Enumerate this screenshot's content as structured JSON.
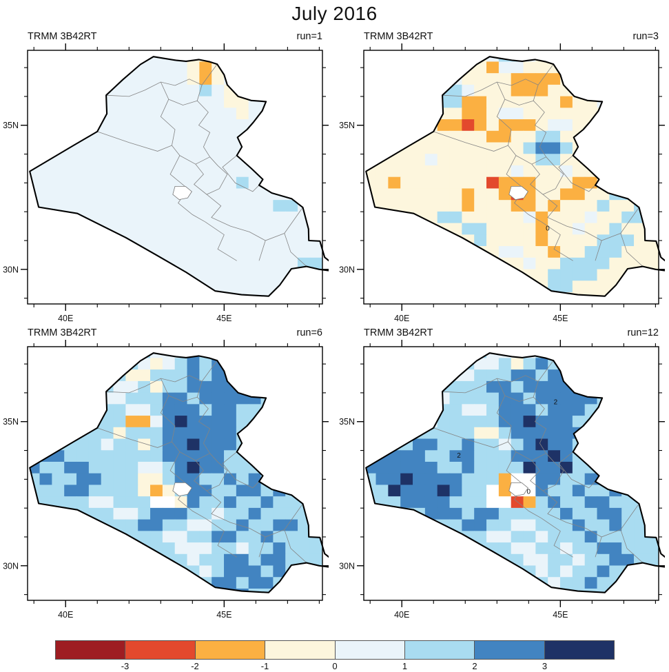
{
  "title": "July 2016",
  "chart_data": {
    "type": "heatmap",
    "title": "July 2016",
    "dataset_label": "TRMM 3B42RT",
    "legend_position": "bottom",
    "grid_on": false,
    "axes": {
      "lon_range": [
        38.8,
        48.1
      ],
      "lat_range": [
        28.8,
        37.6
      ],
      "x_ticks_major": [
        {
          "value": 40,
          "label": "40E"
        },
        {
          "value": 45,
          "label": "45E"
        }
      ],
      "x_ticks_minor": [
        39,
        41,
        42,
        43,
        44,
        46,
        47,
        48
      ],
      "y_ticks_major": [
        {
          "value": 30,
          "label": "30N"
        },
        {
          "value": 35,
          "label": "35N"
        }
      ],
      "y_ticks_minor": [
        29,
        31,
        32,
        33,
        34,
        36,
        37
      ]
    },
    "classes": [
      {
        "bin": "< -3",
        "color": "#9e1d22"
      },
      {
        "bin": "-3 to -2",
        "color": "#e3492d"
      },
      {
        "bin": "-2 to -1",
        "color": "#fbb042"
      },
      {
        "bin": "-1 to 0",
        "color": "#fdf6dd"
      },
      {
        "bin": "0 to 1",
        "color": "#eaf4fa"
      },
      {
        "bin": "1 to 2",
        "color": "#a9dcf1"
      },
      {
        "bin": "2 to 3",
        "color": "#4284c1"
      },
      {
        "bin": "> 3",
        "color": "#1e3266"
      }
    ],
    "colorbar": {
      "tick_labels": [
        "-3",
        "-2",
        "-1",
        "0",
        "1",
        "2",
        "3"
      ]
    },
    "grid": {
      "cols": 24,
      "rows": 22
    },
    "panels": [
      {
        "header_left": "TRMM 3B42RT",
        "run_label": "run=1",
        "base": "4",
        "annotations": [],
        "rows": [
          "444444444444433334444444",
          "444444444444432333444444",
          "444444444444432344444444",
          "444444444444445433444444",
          "444444444444444433444444",
          "444444444444444443444444",
          "444444444444444444444444",
          "444444444444444444444444",
          "444444444444444444444444",
          "444444444444444444444444",
          "444444444444444444444444",
          "444444444444444445444444",
          "444444444444444444444444",
          "444444444444444444445544",
          "444444444444444444444444",
          "444444444444444444444444",
          "444444444444444444444444",
          "444444444444444444444444",
          "444444444444444444444455",
          "444444444444444444444455",
          "444444444444444444444444",
          "444444444444444444444444"
        ]
      },
      {
        "header_left": "TRMM 3B42RT",
        "run_label": "run=3",
        "base": "3",
        "annotations": [
          {
            "text": "0",
            "lon": 44.6,
            "lat": 31.35
          }
        ],
        "rows": [
          "333333333345543333333333",
          "333333333324433334433333",
          "333333443333222233433333",
          "333333554333222333344333",
          "333333552233333323343333",
          "333333332234433333333233",
          "333333221232223443335333",
          "333333333322335533335533",
          "333333333333356653333533",
          "333334333333335533344353",
          "333333333333433343333535",
          "332333333312223332233453",
          "333333332332123322335533",
          "333333332333223233353353",
          "333333553333342333433553",
          "333333335533332334335333",
          "333333333533332333355533",
          "333333333334433233555333",
          "333333333333343355553333",
          "333333333333333555533333",
          "333333333333333553333333",
          "333333333333333333333333"
        ]
      },
      {
        "header_left": "TRMM 3B42RT",
        "run_label": "run=6",
        "base": "5",
        "annotations": [],
        "rows": [
          "555555555544465555555555",
          "555555555434565655555555",
          "555555553355565665555555",
          "555555544535566666555555",
          "555555445556656666655555",
          "555555554456665665555555",
          "555555552246766665555555",
          "555555535556666665455555",
          "555555455356676665555555",
          "566555555556666655555555",
          "655665555445676655555555",
          "565566555335665565655555",
          "555665555323566556656555",
          "5555544555ww365565565555",
          "555555544566655455655555",
          "555555555665544556556655",
          "555555555554455665565555",
          "555555555555444554556555",
          "555555555555545566566555",
          "555555555555554566656555",
          "555555555555555665665555",
          "555555555555555566555555"
        ]
      },
      {
        "header_left": "TRMM 3B42RT",
        "run_label": "run=12",
        "base": "5",
        "annotations": [
          {
            "text": "2",
            "lon": 44.85,
            "lat": 35.6
          },
          {
            "text": "2",
            "lon": 41.8,
            "lat": 33.75
          },
          {
            "text": "0",
            "lon": 44.0,
            "lat": 32.5
          }
        ],
        "rows": [
          "555555555544445555555555",
          "555555555445356535555555",
          "555555544555665665555555",
          "555555555566566666545555",
          "555555455556656666655555",
          "555555554456665666555555",
          "555554555556676665555555",
          "555555555335666666555555",
          "555566556554567665555555",
          "566665566555666765555555",
          "666666556555576675555555",
          "566766665552ww6655665555",
          "5576667655w2ww6556556555",
          "5556666555ww125655665555",
          "555556665665555565566555",
          "555555556655445556556555",
          "555555555544554555655555",
          "555555555555445545566555",
          "555555555555544554556655",
          "555555555555554545565555",
          "555555555555555455655555",
          "555555555555555555555555"
        ]
      }
    ],
    "basemap": {
      "outline": [
        [
          38.87,
          33.4
        ],
        [
          39.15,
          32.16
        ],
        [
          40.37,
          31.94
        ],
        [
          41.9,
          31.1
        ],
        [
          42.86,
          30.5
        ],
        [
          43.8,
          29.9
        ],
        [
          44.72,
          29.25
        ],
        [
          45.55,
          29.12
        ],
        [
          46.4,
          29.07
        ],
        [
          46.75,
          29.45
        ],
        [
          47.12,
          30.02
        ],
        [
          47.6,
          30.1
        ],
        [
          48.0,
          30.0
        ],
        [
          48.47,
          29.93
        ],
        [
          48.55,
          30.08
        ],
        [
          48.17,
          30.42
        ],
        [
          48.02,
          30.98
        ],
        [
          47.67,
          31.0
        ],
        [
          47.66,
          31.4
        ],
        [
          47.48,
          32.15
        ],
        [
          47.13,
          32.45
        ],
        [
          46.5,
          32.65
        ],
        [
          46.1,
          32.92
        ],
        [
          46.22,
          33.12
        ],
        [
          45.86,
          33.5
        ],
        [
          45.4,
          33.95
        ],
        [
          45.56,
          34.25
        ],
        [
          45.42,
          34.58
        ],
        [
          45.72,
          34.85
        ],
        [
          45.92,
          35.1
        ],
        [
          46.2,
          35.5
        ],
        [
          46.32,
          35.82
        ],
        [
          45.85,
          35.86
        ],
        [
          45.44,
          36.0
        ],
        [
          45.1,
          36.4
        ],
        [
          45.0,
          36.75
        ],
        [
          44.78,
          37.12
        ],
        [
          44.55,
          37.2
        ],
        [
          44.2,
          37.28
        ],
        [
          43.8,
          37.22
        ],
        [
          43.5,
          37.25
        ],
        [
          43.1,
          37.32
        ],
        [
          42.77,
          37.38
        ],
        [
          42.36,
          37.11
        ],
        [
          41.8,
          36.58
        ],
        [
          41.28,
          36.04
        ],
        [
          41.3,
          35.4
        ],
        [
          41.0,
          34.78
        ],
        [
          40.25,
          34.3
        ],
        [
          38.87,
          33.4
        ]
      ],
      "internal_borders": [
        [
          [
            41.28,
            36.04
          ],
          [
            42.0,
            36.0
          ],
          [
            42.5,
            36.22
          ],
          [
            43.0,
            36.5
          ],
          [
            43.45,
            36.38
          ],
          [
            43.9,
            36.6
          ],
          [
            44.3,
            36.4
          ],
          [
            44.78,
            37.12
          ]
        ],
        [
          [
            43.0,
            36.5
          ],
          [
            43.25,
            35.9
          ],
          [
            43.0,
            35.3
          ],
          [
            43.45,
            34.85
          ],
          [
            43.35,
            34.3
          ],
          [
            43.6,
            33.95
          ]
        ],
        [
          [
            44.3,
            36.4
          ],
          [
            44.15,
            35.85
          ],
          [
            44.5,
            35.45
          ],
          [
            44.2,
            35.0
          ],
          [
            44.55,
            34.75
          ],
          [
            44.35,
            34.25
          ],
          [
            44.55,
            33.9
          ]
        ],
        [
          [
            43.25,
            35.9
          ],
          [
            43.7,
            35.7
          ],
          [
            44.15,
            35.85
          ]
        ],
        [
          [
            41.0,
            34.78
          ],
          [
            42.0,
            34.4
          ],
          [
            42.9,
            34.1
          ],
          [
            43.35,
            34.3
          ]
        ],
        [
          [
            43.6,
            33.95
          ],
          [
            43.3,
            33.3
          ],
          [
            43.85,
            32.8
          ],
          [
            43.55,
            32.3
          ],
          [
            44.0,
            31.9
          ],
          [
            44.4,
            31.65
          ]
        ],
        [
          [
            43.6,
            33.95
          ],
          [
            44.1,
            33.65
          ],
          [
            44.55,
            33.9
          ]
        ],
        [
          [
            44.1,
            33.65
          ],
          [
            44.35,
            33.3
          ],
          [
            44.05,
            32.95
          ],
          [
            44.45,
            32.6
          ],
          [
            44.85,
            32.8
          ],
          [
            45.1,
            33.3
          ],
          [
            44.8,
            33.6
          ],
          [
            44.55,
            33.9
          ]
        ],
        [
          [
            45.4,
            33.95
          ],
          [
            44.95,
            33.55
          ],
          [
            45.35,
            33.0
          ],
          [
            45.9,
            32.7
          ],
          [
            46.1,
            32.92
          ]
        ],
        [
          [
            44.45,
            32.6
          ],
          [
            44.9,
            32.2
          ],
          [
            44.6,
            31.8
          ],
          [
            45.2,
            31.5
          ],
          [
            45.8,
            31.3
          ],
          [
            46.3,
            31.0
          ],
          [
            46.9,
            31.25
          ],
          [
            47.48,
            32.15
          ]
        ],
        [
          [
            44.4,
            31.65
          ],
          [
            45.0,
            31.2
          ],
          [
            44.8,
            30.7
          ],
          [
            45.4,
            30.3
          ]
        ],
        [
          [
            46.3,
            31.0
          ],
          [
            46.1,
            30.3
          ]
        ],
        [
          [
            46.9,
            31.25
          ],
          [
            47.1,
            30.6
          ],
          [
            47.6,
            30.1
          ]
        ]
      ],
      "lake": [
        [
          43.45,
          32.88
        ],
        [
          43.78,
          32.88
        ],
        [
          43.98,
          32.7
        ],
        [
          43.85,
          32.48
        ],
        [
          43.58,
          32.42
        ],
        [
          43.38,
          32.6
        ],
        [
          43.45,
          32.88
        ]
      ]
    }
  }
}
